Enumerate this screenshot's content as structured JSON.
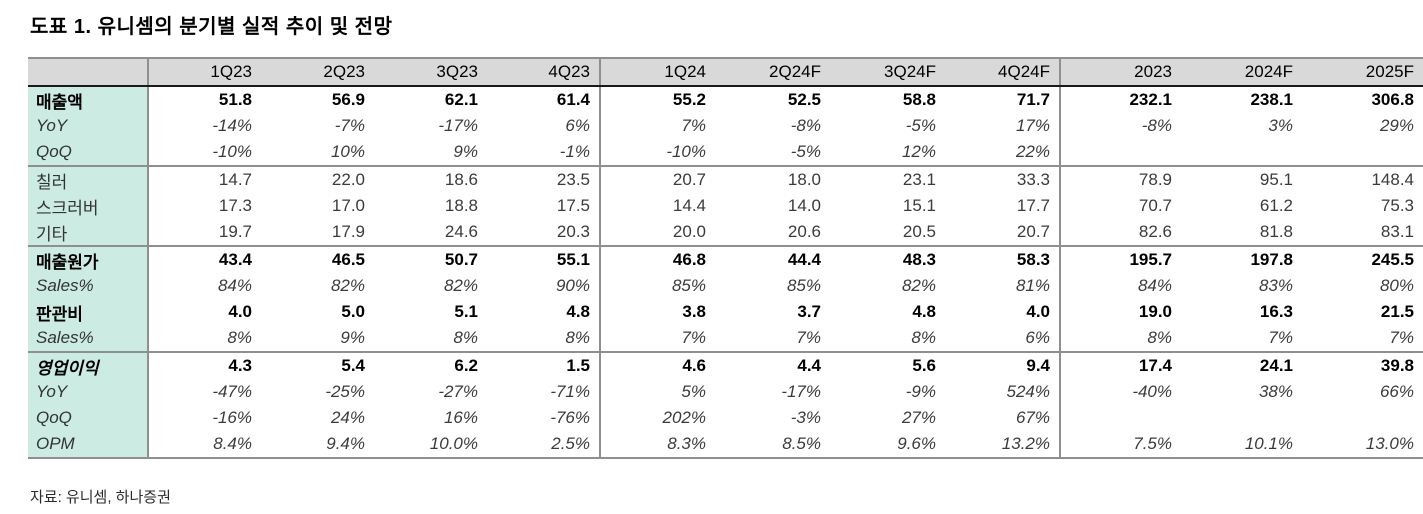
{
  "title": "도표 1. 유니셈의 분기별 실적 추이 및 전망",
  "source": "자료: 유니셈, 하나증권",
  "colors": {
    "header_bg": "#d9d9d9",
    "label_column_bg": "#ccebe2",
    "divider_gray": "#8f8f8f",
    "header_rule_dark": "#1a1a1a",
    "body_text": "#3b3b3b",
    "emphasis_text": "#000000"
  },
  "chart_data": {
    "type": "table",
    "columns": [
      "",
      "1Q23",
      "2Q23",
      "3Q23",
      "4Q23",
      "1Q24",
      "2Q24F",
      "3Q24F",
      "4Q24F",
      "2023",
      "2024F",
      "2025F"
    ],
    "column_groups": [
      "quarters-2023",
      "quarters-2024",
      "annual"
    ],
    "rows": [
      {
        "label": "매출액",
        "style": "bold",
        "section_end": false,
        "values": [
          "51.8",
          "56.9",
          "62.1",
          "61.4",
          "55.2",
          "52.5",
          "58.8",
          "71.7",
          "232.1",
          "238.1",
          "306.8"
        ]
      },
      {
        "label": "YoY",
        "style": "italic",
        "section_end": false,
        "values": [
          "-14%",
          "-7%",
          "-17%",
          "6%",
          "7%",
          "-8%",
          "-5%",
          "17%",
          "-8%",
          "3%",
          "29%"
        ]
      },
      {
        "label": "QoQ",
        "style": "italic",
        "section_end": true,
        "values": [
          "-10%",
          "10%",
          "9%",
          "-1%",
          "-10%",
          "-5%",
          "12%",
          "22%",
          "",
          "",
          ""
        ]
      },
      {
        "label": "칠러",
        "style": "regular",
        "section_end": false,
        "values": [
          "14.7",
          "22.0",
          "18.6",
          "23.5",
          "20.7",
          "18.0",
          "23.1",
          "33.3",
          "78.9",
          "95.1",
          "148.4"
        ]
      },
      {
        "label": "스크러버",
        "style": "regular",
        "section_end": false,
        "values": [
          "17.3",
          "17.0",
          "18.8",
          "17.5",
          "14.4",
          "14.0",
          "15.1",
          "17.7",
          "70.7",
          "61.2",
          "75.3"
        ]
      },
      {
        "label": "기타",
        "style": "regular",
        "section_end": true,
        "values": [
          "19.7",
          "17.9",
          "24.6",
          "20.3",
          "20.0",
          "20.6",
          "20.5",
          "20.7",
          "82.6",
          "81.8",
          "83.1"
        ]
      },
      {
        "label": "매출원가",
        "style": "bold",
        "section_end": false,
        "values": [
          "43.4",
          "46.5",
          "50.7",
          "55.1",
          "46.8",
          "44.4",
          "48.3",
          "58.3",
          "195.7",
          "197.8",
          "245.5"
        ]
      },
      {
        "label": "Sales%",
        "style": "italic",
        "section_end": false,
        "values": [
          "84%",
          "82%",
          "82%",
          "90%",
          "85%",
          "85%",
          "82%",
          "81%",
          "84%",
          "83%",
          "80%"
        ]
      },
      {
        "label": "판관비",
        "style": "bold",
        "section_end": false,
        "values": [
          "4.0",
          "5.0",
          "5.1",
          "4.8",
          "3.8",
          "3.7",
          "4.8",
          "4.0",
          "19.0",
          "16.3",
          "21.5"
        ]
      },
      {
        "label": "Sales%",
        "style": "italic",
        "section_end": true,
        "values": [
          "8%",
          "9%",
          "8%",
          "8%",
          "7%",
          "7%",
          "8%",
          "6%",
          "8%",
          "7%",
          "7%"
        ]
      },
      {
        "label": "영업이익",
        "style": "bold-italic",
        "section_end": false,
        "values": [
          "4.3",
          "5.4",
          "6.2",
          "1.5",
          "4.6",
          "4.4",
          "5.6",
          "9.4",
          "17.4",
          "24.1",
          "39.8"
        ]
      },
      {
        "label": "YoY",
        "style": "italic",
        "section_end": false,
        "values": [
          "-47%",
          "-25%",
          "-27%",
          "-71%",
          "5%",
          "-17%",
          "-9%",
          "524%",
          "-40%",
          "38%",
          "66%"
        ]
      },
      {
        "label": "QoQ",
        "style": "italic",
        "section_end": false,
        "values": [
          "-16%",
          "24%",
          "16%",
          "-76%",
          "202%",
          "-3%",
          "27%",
          "67%",
          "",
          "",
          ""
        ]
      },
      {
        "label": "OPM",
        "style": "italic",
        "section_end": false,
        "values": [
          "8.4%",
          "9.4%",
          "10.0%",
          "2.5%",
          "8.3%",
          "8.5%",
          "9.6%",
          "13.2%",
          "7.5%",
          "10.1%",
          "13.0%"
        ]
      }
    ]
  }
}
